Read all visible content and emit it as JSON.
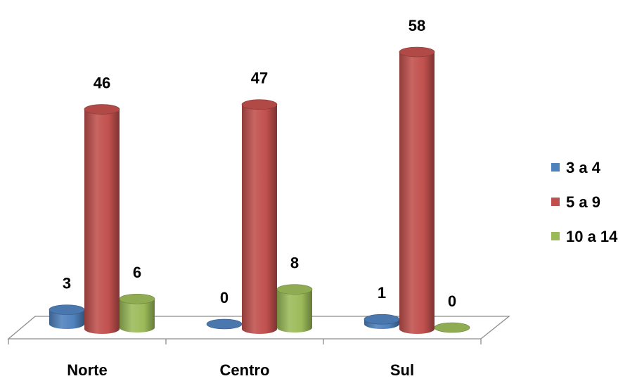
{
  "chart_data": {
    "type": "bar",
    "style": "3d-cylinder",
    "categories": [
      "Norte",
      "Centro",
      "Sul"
    ],
    "series": [
      {
        "name": "3 a 4",
        "color": "#4F81BD",
        "values": [
          3,
          0,
          1
        ]
      },
      {
        "name": "5 a 9",
        "color": "#C0504D",
        "values": [
          46,
          47,
          58
        ]
      },
      {
        "name": "10 a 14",
        "color": "#9BBB59",
        "values": [
          6,
          8,
          0
        ]
      }
    ],
    "title": "",
    "xlabel": "",
    "ylabel": "",
    "ylim": [
      0,
      58
    ],
    "grid": false,
    "legend_position": "right",
    "data_labels": true
  }
}
